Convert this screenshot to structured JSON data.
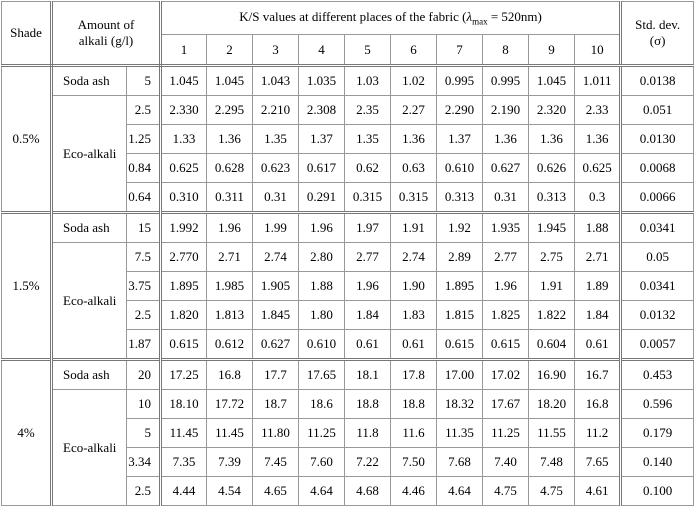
{
  "header": {
    "shade": "Shade",
    "amount": [
      "Amount of",
      "alkali (g/l)"
    ],
    "ks": {
      "prefix": "K/S values at different places of the fabric (",
      "symbol": "λ",
      "subscript": "max",
      "suffix": " = 520nm)"
    },
    "columns": [
      "1",
      "2",
      "3",
      "4",
      "5",
      "6",
      "7",
      "8",
      "9",
      "10"
    ],
    "std": [
      "Std. dev.",
      "(σ)"
    ]
  },
  "groups": [
    {
      "shade": "0.5%",
      "alkalis": [
        {
          "name": "Soda ash",
          "rows": [
            {
              "amount": "5",
              "values": [
                "1.045",
                "1.045",
                "1.043",
                "1.035",
                "1.03",
                "1.02",
                "0.995",
                "0.995",
                "1.045",
                "1.011"
              ],
              "std": "0.0138"
            }
          ]
        },
        {
          "name": "Eco-alkali",
          "rows": [
            {
              "amount": "2.5",
              "values": [
                "2.330",
                "2.295",
                "2.210",
                "2.308",
                "2.35",
                "2.27",
                "2.290",
                "2.190",
                "2.320",
                "2.33"
              ],
              "std": "0.051"
            },
            {
              "amount": "1.25",
              "values": [
                "1.33",
                "1.36",
                "1.35",
                "1.37",
                "1.35",
                "1.36",
                "1.37",
                "1.36",
                "1.36",
                "1.36"
              ],
              "std": "0.0130"
            },
            {
              "amount": "0.84",
              "values": [
                "0.625",
                "0.628",
                "0.623",
                "0.617",
                "0.62",
                "0.63",
                "0.610",
                "0.627",
                "0.626",
                "0.625"
              ],
              "std": "0.0068"
            },
            {
              "amount": "0.64",
              "values": [
                "0.310",
                "0.311",
                "0.31",
                "0.291",
                "0.315",
                "0.315",
                "0.313",
                "0.31",
                "0.313",
                "0.3"
              ],
              "std": "0.0066"
            }
          ]
        }
      ]
    },
    {
      "shade": "1.5%",
      "alkalis": [
        {
          "name": "Soda ash",
          "rows": [
            {
              "amount": "15",
              "values": [
                "1.992",
                "1.96",
                "1.99",
                "1.96",
                "1.97",
                "1.91",
                "1.92",
                "1.935",
                "1.945",
                "1.88"
              ],
              "std": "0.0341"
            }
          ]
        },
        {
          "name": "Eco-alkali",
          "rows": [
            {
              "amount": "7.5",
              "values": [
                "2.770",
                "2.71",
                "2.74",
                "2.80",
                "2.77",
                "2.74",
                "2.89",
                "2.77",
                "2.75",
                "2.71"
              ],
              "std": "0.05"
            },
            {
              "amount": "3.75",
              "values": [
                "1.895",
                "1.985",
                "1.905",
                "1.88",
                "1.96",
                "1.90",
                "1.895",
                "1.96",
                "1.91",
                "1.89"
              ],
              "std": "0.0341"
            },
            {
              "amount": "2.5",
              "values": [
                "1.820",
                "1.813",
                "1.845",
                "1.80",
                "1.84",
                "1.83",
                "1.815",
                "1.825",
                "1.822",
                "1.84"
              ],
              "std": "0.0132"
            },
            {
              "amount": "1.87",
              "values": [
                "0.615",
                "0.612",
                "0.627",
                "0.610",
                "0.61",
                "0.61",
                "0.615",
                "0.615",
                "0.604",
                "0.61"
              ],
              "std": "0.0057"
            }
          ]
        }
      ]
    },
    {
      "shade": "4%",
      "alkalis": [
        {
          "name": "Soda ash",
          "rows": [
            {
              "amount": "20",
              "values": [
                "17.25",
                "16.8",
                "17.7",
                "17.65",
                "18.1",
                "17.8",
                "17.00",
                "17.02",
                "16.90",
                "16.7"
              ],
              "std": "0.453"
            }
          ]
        },
        {
          "name": "Eco-alkali",
          "rows": [
            {
              "amount": "10",
              "values": [
                "18.10",
                "17.72",
                "18.7",
                "18.6",
                "18.8",
                "18.8",
                "18.32",
                "17.67",
                "18.20",
                "16.8"
              ],
              "std": "0.596"
            },
            {
              "amount": "5",
              "values": [
                "11.45",
                "11.45",
                "11.80",
                "11.25",
                "11.8",
                "11.6",
                "11.35",
                "11.25",
                "11.55",
                "11.2"
              ],
              "std": "0.179"
            },
            {
              "amount": "3.34",
              "values": [
                "7.35",
                "7.39",
                "7.45",
                "7.60",
                "7.22",
                "7.50",
                "7.68",
                "7.40",
                "7.48",
                "7.65"
              ],
              "std": "0.140"
            },
            {
              "amount": "2.5",
              "values": [
                "4.44",
                "4.54",
                "4.65",
                "4.64",
                "4.68",
                "4.46",
                "4.64",
                "4.75",
                "4.75",
                "4.61"
              ],
              "std": "0.100"
            }
          ]
        }
      ]
    }
  ]
}
